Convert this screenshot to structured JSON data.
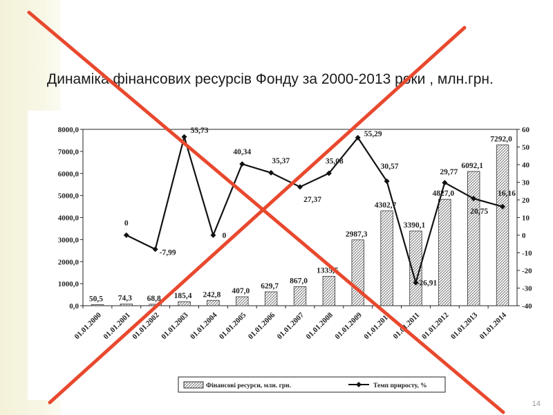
{
  "slide": {
    "title": "Динаміка фінансових ресурсів Фонду за 2000-2013 роки , млн.грн.",
    "page_number": "14"
  },
  "colors": {
    "accent_cross": "#e8492e",
    "sidebar": "#f6f4df",
    "bars_hatch": "#333333",
    "line": "#111111"
  },
  "chart_data": {
    "type": "bar",
    "categories": [
      "01.01.2000",
      "01.01.2001",
      "01.01.2002",
      "01.01.2003",
      "01.01.2004",
      "01.01.2005",
      "01.01.2006",
      "01.01.2007",
      "01.01.2008",
      "01.01.2009",
      "01.01.2010",
      "01.01.2011",
      "01.01.2012",
      "01.01.2013",
      "01.01.2014"
    ],
    "series": [
      {
        "name": "Фінансові ресурси, млн. грн.",
        "type": "bar",
        "axis": "left",
        "values": [
          50.5,
          74.3,
          68.8,
          185.4,
          242.8,
          407.0,
          629.7,
          867.0,
          1335.5,
          2987.3,
          4302.7,
          3390.1,
          4827.0,
          6092.1,
          7292.0
        ],
        "labels": [
          "50,5",
          "74,3",
          "68,8",
          "185,4",
          "242,8",
          "407,0",
          "629,7",
          "867,0",
          "1335,5",
          "2987,3",
          "4302,7",
          "3390,1",
          "4827,0",
          "6092,1",
          "7292,0"
        ]
      },
      {
        "name": "Темп приросту, %",
        "type": "line",
        "axis": "right",
        "values": [
          null,
          0,
          -7.99,
          55.73,
          0,
          40.34,
          35.37,
          27.37,
          35.08,
          55.29,
          30.57,
          -26.91,
          29.77,
          20.75,
          16.16
        ],
        "labels": [
          "",
          "0",
          "-7,99",
          "55,73",
          "0",
          "40,34",
          "35,37",
          "27,37",
          "35,08",
          "55,29",
          "30,57",
          "-26,91",
          "29,77",
          "20,75",
          "16,16"
        ]
      }
    ],
    "ylim_left": [
      0,
      8000
    ],
    "yticks_left": [
      "0,0",
      "1000,0",
      "2000,0",
      "3000,0",
      "4000,0",
      "5000,0",
      "6000,0",
      "7000,0",
      "8000,0"
    ],
    "ylim_right": [
      -40,
      60
    ],
    "yticks_right": [
      "-40",
      "-30",
      "-20",
      "-10",
      "0",
      "10",
      "20",
      "30",
      "40",
      "50",
      "60"
    ],
    "legend_position": "bottom-center",
    "grid": false
  }
}
